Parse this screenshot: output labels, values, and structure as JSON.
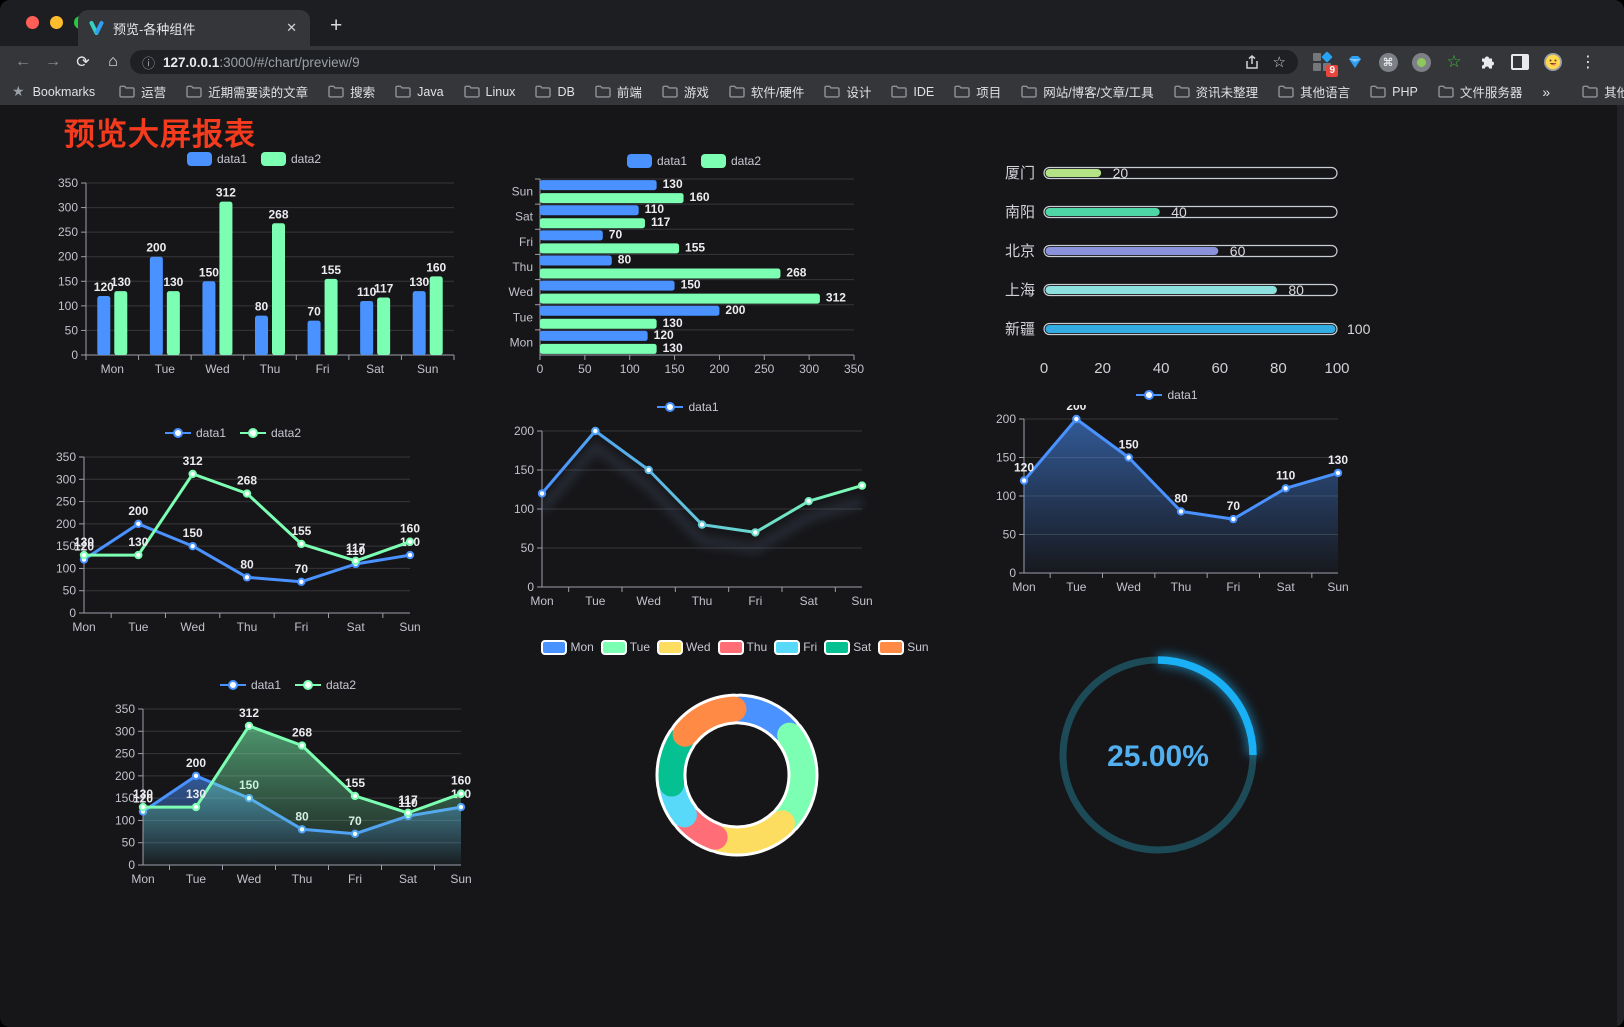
{
  "browser": {
    "tab": {
      "title": "预览-各种组件"
    },
    "url": "127.0.0.1:3000/#/chart/preview/9",
    "url_host": "127.0.0.1",
    "url_suffix": ":3000/#/chart/preview/9",
    "extension_badge": "9",
    "icons": {
      "back": "←",
      "forward": "→",
      "reload": "⟳",
      "home": "⌂",
      "info": "ⓘ",
      "close": "✕",
      "new_tab": "+",
      "menu": "⋮",
      "bookmarks_star": "★",
      "url_star": "☆",
      "cmd": "⌘",
      "ext_star": "☆"
    },
    "bookmarks_bar": {
      "label": "Bookmarks",
      "items": [
        "运营",
        "近期需要读的文章",
        "搜索",
        "Java",
        "Linux",
        "DB",
        "前端",
        "游戏",
        "软件/硬件",
        "设计",
        "IDE",
        "项目",
        "网站/博客/文章/工具",
        "资讯未整理",
        "其他语言",
        "PHP",
        "文件服务器"
      ],
      "overflow": "»",
      "other": "其他书签"
    }
  },
  "page": {
    "title": "预览大屏报表",
    "title_color": "#f43b1e",
    "background": "#161619"
  },
  "chart_data": [
    {
      "id": "bar-vertical",
      "type": "bar",
      "categories": [
        "Mon",
        "Tue",
        "Wed",
        "Thu",
        "Fri",
        "Sat",
        "Sun"
      ],
      "series": [
        {
          "name": "data1",
          "color": "#4992ff",
          "values": [
            120,
            200,
            150,
            80,
            70,
            110,
            130
          ]
        },
        {
          "name": "data2",
          "color": "#7cffb2",
          "values": [
            130,
            130,
            312,
            268,
            155,
            117,
            160
          ]
        }
      ],
      "ylim": [
        0,
        350
      ],
      "ytick": 50,
      "value_labels": true,
      "legend_position": "top",
      "grid": true
    },
    {
      "id": "bar-horizontal",
      "type": "bar-horizontal",
      "categories": [
        "Mon",
        "Tue",
        "Wed",
        "Thu",
        "Fri",
        "Sat",
        "Sun"
      ],
      "series": [
        {
          "name": "data1",
          "color": "#4992ff",
          "values": [
            120,
            200,
            150,
            80,
            70,
            110,
            130
          ]
        },
        {
          "name": "data2",
          "color": "#7cffb2",
          "values": [
            130,
            130,
            312,
            268,
            155,
            117,
            160
          ]
        }
      ],
      "xlim": [
        0,
        350
      ],
      "xtick": 50,
      "value_labels": true,
      "legend_position": "top",
      "grid": true
    },
    {
      "id": "progress-bars",
      "type": "progress",
      "categories": [
        "厦门",
        "南阳",
        "北京",
        "上海",
        "新疆"
      ],
      "values": [
        20,
        40,
        60,
        80,
        100
      ],
      "colors": [
        "#b4e386",
        "#4fd6a6",
        "#8b92dc",
        "#8ce0dd",
        "#33ace4"
      ],
      "xlim": [
        0,
        100
      ],
      "xticks": [
        0,
        20,
        40,
        60,
        80,
        100
      ]
    },
    {
      "id": "line-two",
      "type": "line",
      "categories": [
        "Mon",
        "Tue",
        "Wed",
        "Thu",
        "Fri",
        "Sat",
        "Sun"
      ],
      "series": [
        {
          "name": "data1",
          "color": "#4992ff",
          "values": [
            120,
            200,
            150,
            80,
            70,
            110,
            130
          ]
        },
        {
          "name": "data2",
          "color": "#7cffb2",
          "values": [
            130,
            130,
            312,
            268,
            155,
            117,
            160
          ]
        }
      ],
      "ylim": [
        0,
        350
      ],
      "ytick": 50,
      "value_labels": true,
      "legend_position": "top",
      "grid": true
    },
    {
      "id": "line-gradient",
      "type": "line",
      "categories": [
        "Mon",
        "Tue",
        "Wed",
        "Thu",
        "Fri",
        "Sat",
        "Sun"
      ],
      "series": [
        {
          "name": "data1",
          "gradient": [
            "#4992ff",
            "#7cffb2"
          ],
          "values": [
            120,
            200,
            150,
            80,
            70,
            110,
            130
          ]
        }
      ],
      "ylim": [
        0,
        200
      ],
      "ytick": 50,
      "value_labels": false,
      "legend_position": "top",
      "grid": true
    },
    {
      "id": "area-single",
      "type": "line",
      "categories": [
        "Mon",
        "Tue",
        "Wed",
        "Thu",
        "Fri",
        "Sat",
        "Sun"
      ],
      "series": [
        {
          "name": "data1",
          "color": "#4992ff",
          "area": true,
          "values": [
            120,
            200,
            150,
            80,
            70,
            110,
            130
          ]
        }
      ],
      "ylim": [
        0,
        200
      ],
      "ytick": 50,
      "value_labels": true,
      "legend_position": "top",
      "grid": true
    },
    {
      "id": "area-two",
      "type": "line",
      "categories": [
        "Mon",
        "Tue",
        "Wed",
        "Thu",
        "Fri",
        "Sat",
        "Sun"
      ],
      "series": [
        {
          "name": "data1",
          "color": "#4992ff",
          "area": true,
          "values": [
            120,
            200,
            150,
            80,
            70,
            110,
            130
          ]
        },
        {
          "name": "data2",
          "color": "#7cffb2",
          "area": true,
          "values": [
            130,
            130,
            312,
            268,
            155,
            117,
            160
          ]
        }
      ],
      "ylim": [
        0,
        350
      ],
      "ytick": 50,
      "value_labels": true,
      "legend_position": "top",
      "grid": true
    },
    {
      "id": "pie-donut",
      "type": "pie",
      "categories": [
        "Mon",
        "Tue",
        "Wed",
        "Thu",
        "Fri",
        "Sat",
        "Sun"
      ],
      "values": [
        120,
        200,
        150,
        80,
        70,
        110,
        130
      ],
      "colors": [
        "#4992ff",
        "#7cffb2",
        "#fddd60",
        "#ff6e76",
        "#58d9f9",
        "#05c091",
        "#ff8a45"
      ],
      "legend_position": "top"
    },
    {
      "id": "gauge",
      "type": "gauge",
      "value": 25,
      "max": 100,
      "label": "25.00%",
      "color": "#1ab0f5",
      "track_color": "#1d4a57",
      "text_color": "#53b0f0"
    }
  ]
}
